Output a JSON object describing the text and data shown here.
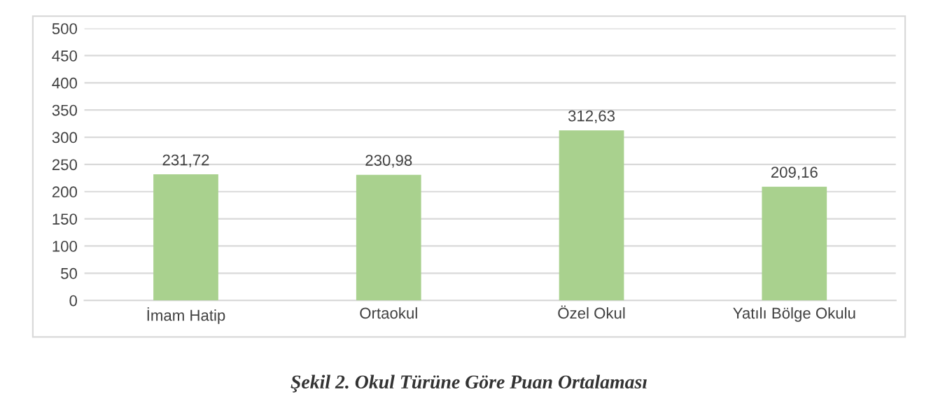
{
  "chart_data": {
    "type": "bar",
    "title": "Şekil 2. Okul Türüne Göre Puan Ortalaması",
    "categories": [
      "İmam Hatip",
      "Ortaokul",
      "Özel Okul",
      "Yatılı Bölge Okulu"
    ],
    "values": [
      231.72,
      230.98,
      312.63,
      209.16
    ],
    "value_labels": [
      "231,72",
      "230,98",
      "312,63",
      "209,16"
    ],
    "color": "#a9d18e",
    "ylim": [
      0,
      500
    ],
    "yticks": [
      0,
      50,
      100,
      150,
      200,
      250,
      300,
      350,
      400,
      450,
      500
    ],
    "grid": "y",
    "legend": false
  }
}
